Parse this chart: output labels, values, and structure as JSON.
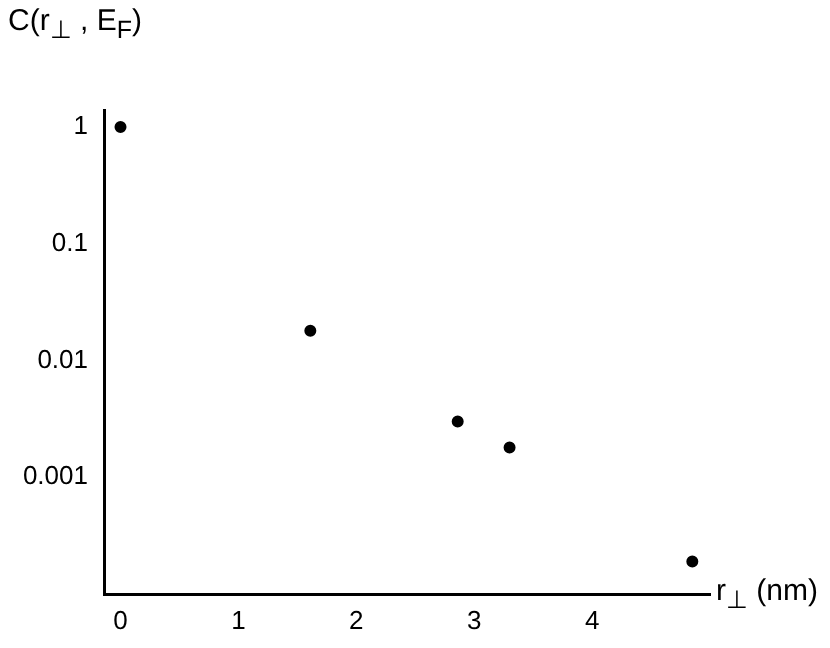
{
  "chart_data": {
    "type": "scatter",
    "xlabel": "r$_{⊥}$ (nm)",
    "ylabel": "C(r$_{⊥}$ , E$_{F}$)",
    "x": [
      0,
      1.61,
      2.86,
      3.3,
      4.85
    ],
    "values": [
      1,
      0.018,
      0.003,
      0.0018,
      0.00019
    ],
    "color": "#000000",
    "marker": "circle",
    "log": "y",
    "grid": false,
    "legend": false,
    "xlim": [
      -0.14,
      5
    ],
    "xticks": [
      0,
      1,
      2,
      3,
      4
    ],
    "ylim": [
      0.0001,
      1.4
    ],
    "yticks": [
      1,
      0.1,
      0.01,
      0.001
    ]
  }
}
